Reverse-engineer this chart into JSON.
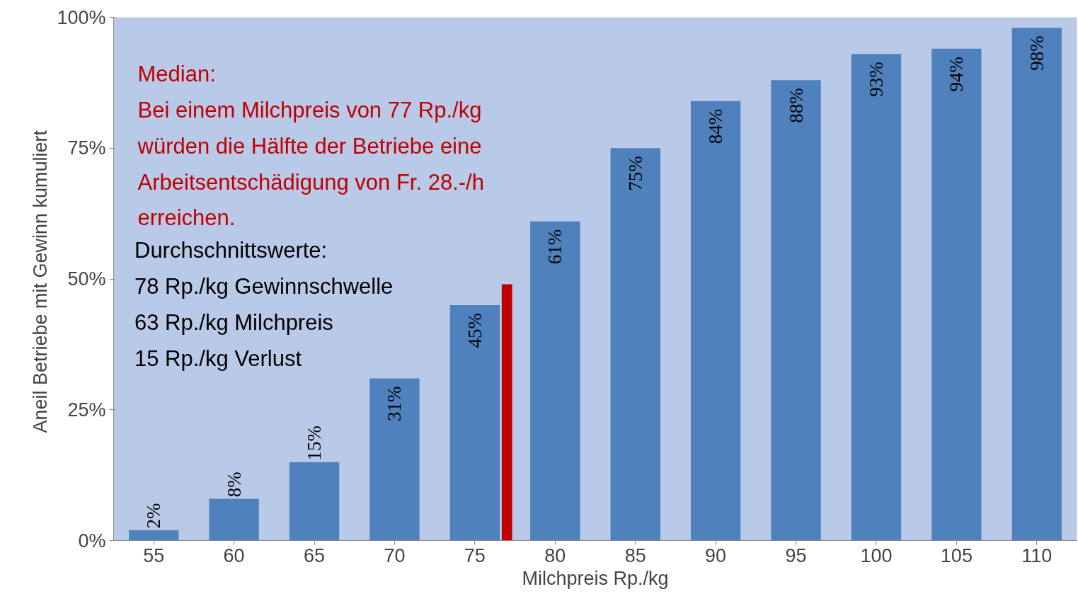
{
  "chart_data": {
    "type": "bar",
    "xlabel": "Milchpreis Rp./kg",
    "ylabel": "Aneil  Betriebe mit Gewinn kumuliert",
    "x": [
      55,
      60,
      65,
      70,
      75,
      80,
      85,
      90,
      95,
      100,
      105,
      110
    ],
    "xlim": [
      52.5,
      112.5
    ],
    "xticks": [
      55,
      60,
      65,
      70,
      75,
      80,
      85,
      90,
      95,
      100,
      105,
      110
    ],
    "ylim": [
      0,
      100
    ],
    "yticks": [
      {
        "value": 0,
        "label": "0%"
      },
      {
        "value": 25,
        "label": "25%"
      },
      {
        "value": 50,
        "label": "50%"
      },
      {
        "value": 75,
        "label": "75%"
      },
      {
        "value": 100,
        "label": "100%"
      }
    ],
    "series": [
      {
        "color": "#4f81bd",
        "values": [
          2,
          8,
          15,
          31,
          45,
          61,
          75,
          84,
          88,
          93,
          94,
          98
        ],
        "value_labels": [
          "2%",
          "8%",
          "15%",
          "31%",
          "45%",
          "61%",
          "75%",
          "84%",
          "88%",
          "93%",
          "94%",
          "98%"
        ]
      },
      {
        "color": "#c00000",
        "x": [
          77
        ],
        "values": [
          49
        ]
      }
    ],
    "annotations": [
      "Median:\nBei einem  Milchpreis  von  77  Rp./kg\nwürden  die  Hälfte  der  Betriebe  eine\nArbeitsentschädigung  von  Fr.  28.-/h\nerreichen.",
      "Durchschnittswerte:\n78 Rp./kg Gewinnschwelle\n63 Rp./kg Milchpreis\n15 Rp./kg Verlust"
    ]
  }
}
